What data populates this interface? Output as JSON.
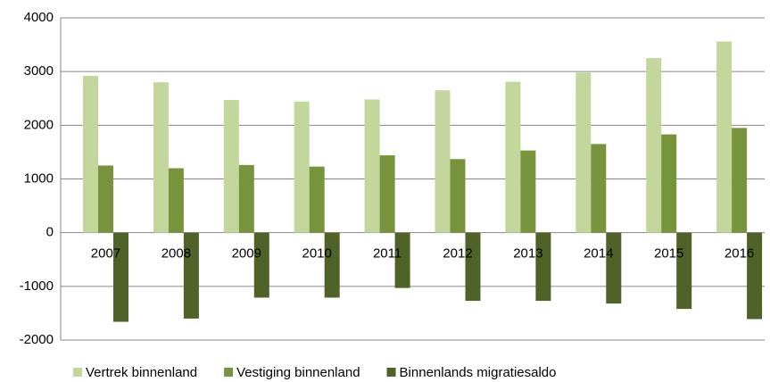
{
  "chart_data": {
    "type": "bar",
    "categories": [
      "2007",
      "2008",
      "2009",
      "2010",
      "2011",
      "2012",
      "2013",
      "2014",
      "2015",
      "2016"
    ],
    "series": [
      {
        "name": "Vertrek binnenland",
        "color": "#c3d69b",
        "values": [
          2920,
          2800,
          2470,
          2440,
          2480,
          2650,
          2810,
          2980,
          3250,
          3560
        ]
      },
      {
        "name": "Vestiging binnenland",
        "color": "#77933c",
        "values": [
          1250,
          1200,
          1260,
          1230,
          1440,
          1370,
          1530,
          1650,
          1830,
          1950
        ]
      },
      {
        "name": "Binnenlands migratiesaldo",
        "color": "#4f6228",
        "values": [
          -1660,
          -1600,
          -1210,
          -1210,
          -1030,
          -1270,
          -1270,
          -1320,
          -1420,
          -1610
        ]
      }
    ],
    "ylim": [
      -2000,
      4000
    ],
    "yticks": [
      -2000,
      -1000,
      0,
      1000,
      2000,
      3000,
      4000
    ],
    "grid": true,
    "legend": "bottom"
  }
}
